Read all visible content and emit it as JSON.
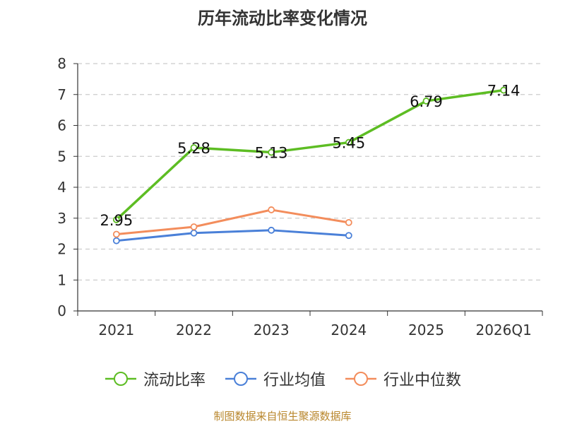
{
  "chart_data": {
    "type": "line",
    "title": "历年流动比率变化情况",
    "categories": [
      "2021",
      "2022",
      "2023",
      "2024",
      "2025",
      "2026Q1"
    ],
    "ylim": [
      0,
      8
    ],
    "yticks": [
      0,
      1,
      2,
      3,
      4,
      5,
      6,
      7,
      8
    ],
    "grid": true,
    "legend_position": "bottom",
    "series": [
      {
        "name": "流动比率",
        "color": "#5dbd23",
        "values": [
          2.95,
          5.28,
          5.13,
          5.45,
          6.79,
          7.14
        ],
        "labels": [
          "2.95",
          "5.28",
          "5.13",
          "5.45",
          "6.79",
          "7.14"
        ]
      },
      {
        "name": "行业均值",
        "color": "#4a80d8",
        "values": [
          2.27,
          2.52,
          2.61,
          2.44,
          null,
          null
        ]
      },
      {
        "name": "行业中位数",
        "color": "#f38d5c",
        "values": [
          2.48,
          2.72,
          3.27,
          2.86,
          null,
          null
        ]
      }
    ]
  },
  "footer": {
    "source": "制图数据来自恒生聚源数据库"
  }
}
